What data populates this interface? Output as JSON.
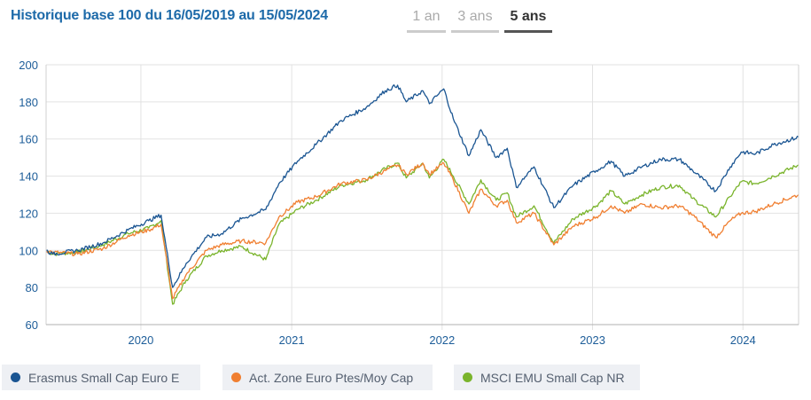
{
  "header": {
    "title": "Historique base 100 du 16/05/2019 au 15/05/2024",
    "tabs": [
      {
        "label": "1 an",
        "active": false
      },
      {
        "label": "3 ans",
        "active": false
      },
      {
        "label": "5 ans",
        "active": true
      }
    ]
  },
  "chart_data": {
    "type": "line",
    "title": "Historique base 100 du 16/05/2019 au 15/05/2024",
    "xlabel": "",
    "ylabel": "",
    "x_range": [
      "2019-05-16",
      "2024-05-15"
    ],
    "ylim": [
      60,
      200
    ],
    "y_ticks": [
      60,
      80,
      100,
      120,
      140,
      160,
      180,
      200
    ],
    "x_ticks": [
      {
        "label": "2020",
        "date": "2020-01-01"
      },
      {
        "label": "2021",
        "date": "2021-01-01"
      },
      {
        "label": "2022",
        "date": "2022-01-01"
      },
      {
        "label": "2023",
        "date": "2023-01-01"
      },
      {
        "label": "2024",
        "date": "2024-01-01"
      }
    ],
    "grid": "horizontal",
    "legend_position": "bottom",
    "series": [
      {
        "name": "Erasmus Small Cap Euro E",
        "color": "#1a5592",
        "points": [
          [
            "2019-05-16",
            100
          ],
          [
            "2019-06-01",
            98
          ],
          [
            "2019-08-01",
            100
          ],
          [
            "2019-10-01",
            104
          ],
          [
            "2019-12-01",
            111
          ],
          [
            "2020-01-20",
            116
          ],
          [
            "2020-02-19",
            119
          ],
          [
            "2020-03-18",
            80
          ],
          [
            "2020-04-20",
            93
          ],
          [
            "2020-06-08",
            107
          ],
          [
            "2020-07-15",
            109
          ],
          [
            "2020-09-01",
            117
          ],
          [
            "2020-10-30",
            122
          ],
          [
            "2020-12-01",
            136
          ],
          [
            "2021-01-15",
            148
          ],
          [
            "2021-03-01",
            157
          ],
          [
            "2021-05-01",
            170
          ],
          [
            "2021-07-01",
            177
          ],
          [
            "2021-08-16",
            186
          ],
          [
            "2021-09-15",
            189
          ],
          [
            "2021-10-06",
            180
          ],
          [
            "2021-11-15",
            186
          ],
          [
            "2021-12-01",
            179
          ],
          [
            "2022-01-05",
            187
          ],
          [
            "2022-01-28",
            171
          ],
          [
            "2022-03-07",
            151
          ],
          [
            "2022-04-05",
            165
          ],
          [
            "2022-05-12",
            150
          ],
          [
            "2022-06-08",
            155
          ],
          [
            "2022-06-30",
            134
          ],
          [
            "2022-08-12",
            145
          ],
          [
            "2022-09-29",
            123
          ],
          [
            "2022-11-15",
            135
          ],
          [
            "2023-01-10",
            143
          ],
          [
            "2023-02-15",
            148
          ],
          [
            "2023-03-20",
            140
          ],
          [
            "2023-05-01",
            145
          ],
          [
            "2023-06-15",
            149
          ],
          [
            "2023-07-31",
            149
          ],
          [
            "2023-09-01",
            143
          ],
          [
            "2023-10-27",
            132
          ],
          [
            "2023-12-01",
            145
          ],
          [
            "2023-12-28",
            153
          ],
          [
            "2024-02-01",
            152
          ],
          [
            "2024-03-15",
            157
          ],
          [
            "2024-05-15",
            161
          ]
        ]
      },
      {
        "name": "Act. Zone Euro Ptes/Moy Cap",
        "color": "#f07f31",
        "points": [
          [
            "2019-05-16",
            100
          ],
          [
            "2019-06-01",
            99
          ],
          [
            "2019-08-01",
            98
          ],
          [
            "2019-10-01",
            101
          ],
          [
            "2019-12-01",
            108
          ],
          [
            "2020-01-20",
            111
          ],
          [
            "2020-02-19",
            114
          ],
          [
            "2020-03-18",
            74
          ],
          [
            "2020-04-20",
            87
          ],
          [
            "2020-06-08",
            100
          ],
          [
            "2020-07-15",
            103
          ],
          [
            "2020-09-01",
            105
          ],
          [
            "2020-10-30",
            104
          ],
          [
            "2020-12-01",
            118
          ],
          [
            "2021-01-15",
            126
          ],
          [
            "2021-03-01",
            129
          ],
          [
            "2021-05-01",
            136
          ],
          [
            "2021-07-01",
            138
          ],
          [
            "2021-08-16",
            143
          ],
          [
            "2021-09-15",
            146
          ],
          [
            "2021-10-06",
            141
          ],
          [
            "2021-11-15",
            147
          ],
          [
            "2021-12-01",
            141
          ],
          [
            "2022-01-05",
            147
          ],
          [
            "2022-01-28",
            138
          ],
          [
            "2022-03-07",
            120
          ],
          [
            "2022-04-05",
            133
          ],
          [
            "2022-05-12",
            124
          ],
          [
            "2022-06-08",
            127
          ],
          [
            "2022-06-30",
            115
          ],
          [
            "2022-08-12",
            120
          ],
          [
            "2022-09-29",
            103
          ],
          [
            "2022-11-15",
            113
          ],
          [
            "2023-01-10",
            118
          ],
          [
            "2023-02-15",
            124
          ],
          [
            "2023-03-20",
            120
          ],
          [
            "2023-05-01",
            125
          ],
          [
            "2023-06-15",
            123
          ],
          [
            "2023-07-31",
            124
          ],
          [
            "2023-09-01",
            119
          ],
          [
            "2023-10-27",
            107
          ],
          [
            "2023-12-01",
            116
          ],
          [
            "2023-12-28",
            120
          ],
          [
            "2024-02-01",
            121
          ],
          [
            "2024-03-15",
            125
          ],
          [
            "2024-05-15",
            130
          ]
        ]
      },
      {
        "name": "MSCI EMU Small Cap NR",
        "color": "#7ab42c",
        "points": [
          [
            "2019-05-16",
            100
          ],
          [
            "2019-06-01",
            98
          ],
          [
            "2019-08-01",
            99
          ],
          [
            "2019-10-01",
            103
          ],
          [
            "2019-12-01",
            109
          ],
          [
            "2020-01-20",
            112
          ],
          [
            "2020-02-19",
            116
          ],
          [
            "2020-03-18",
            71
          ],
          [
            "2020-04-20",
            84
          ],
          [
            "2020-06-08",
            97
          ],
          [
            "2020-07-15",
            100
          ],
          [
            "2020-09-01",
            102
          ],
          [
            "2020-10-30",
            95
          ],
          [
            "2020-12-01",
            114
          ],
          [
            "2021-01-15",
            122
          ],
          [
            "2021-03-01",
            127
          ],
          [
            "2021-05-01",
            135
          ],
          [
            "2021-07-01",
            138
          ],
          [
            "2021-08-16",
            144
          ],
          [
            "2021-09-15",
            147
          ],
          [
            "2021-10-06",
            139
          ],
          [
            "2021-11-15",
            147
          ],
          [
            "2021-12-01",
            139
          ],
          [
            "2022-01-05",
            149
          ],
          [
            "2022-01-28",
            140
          ],
          [
            "2022-03-07",
            125
          ],
          [
            "2022-04-05",
            138
          ],
          [
            "2022-05-12",
            127
          ],
          [
            "2022-06-08",
            131
          ],
          [
            "2022-06-30",
            118
          ],
          [
            "2022-08-12",
            124
          ],
          [
            "2022-09-29",
            104
          ],
          [
            "2022-11-15",
            117
          ],
          [
            "2023-01-10",
            124
          ],
          [
            "2023-02-15",
            132
          ],
          [
            "2023-03-20",
            125
          ],
          [
            "2023-05-01",
            130
          ],
          [
            "2023-06-15",
            134
          ],
          [
            "2023-07-31",
            135
          ],
          [
            "2023-09-01",
            128
          ],
          [
            "2023-10-27",
            118
          ],
          [
            "2023-12-01",
            129
          ],
          [
            "2023-12-28",
            137
          ],
          [
            "2024-02-01",
            136
          ],
          [
            "2024-03-15",
            140
          ],
          [
            "2024-05-15",
            146
          ]
        ]
      }
    ]
  }
}
